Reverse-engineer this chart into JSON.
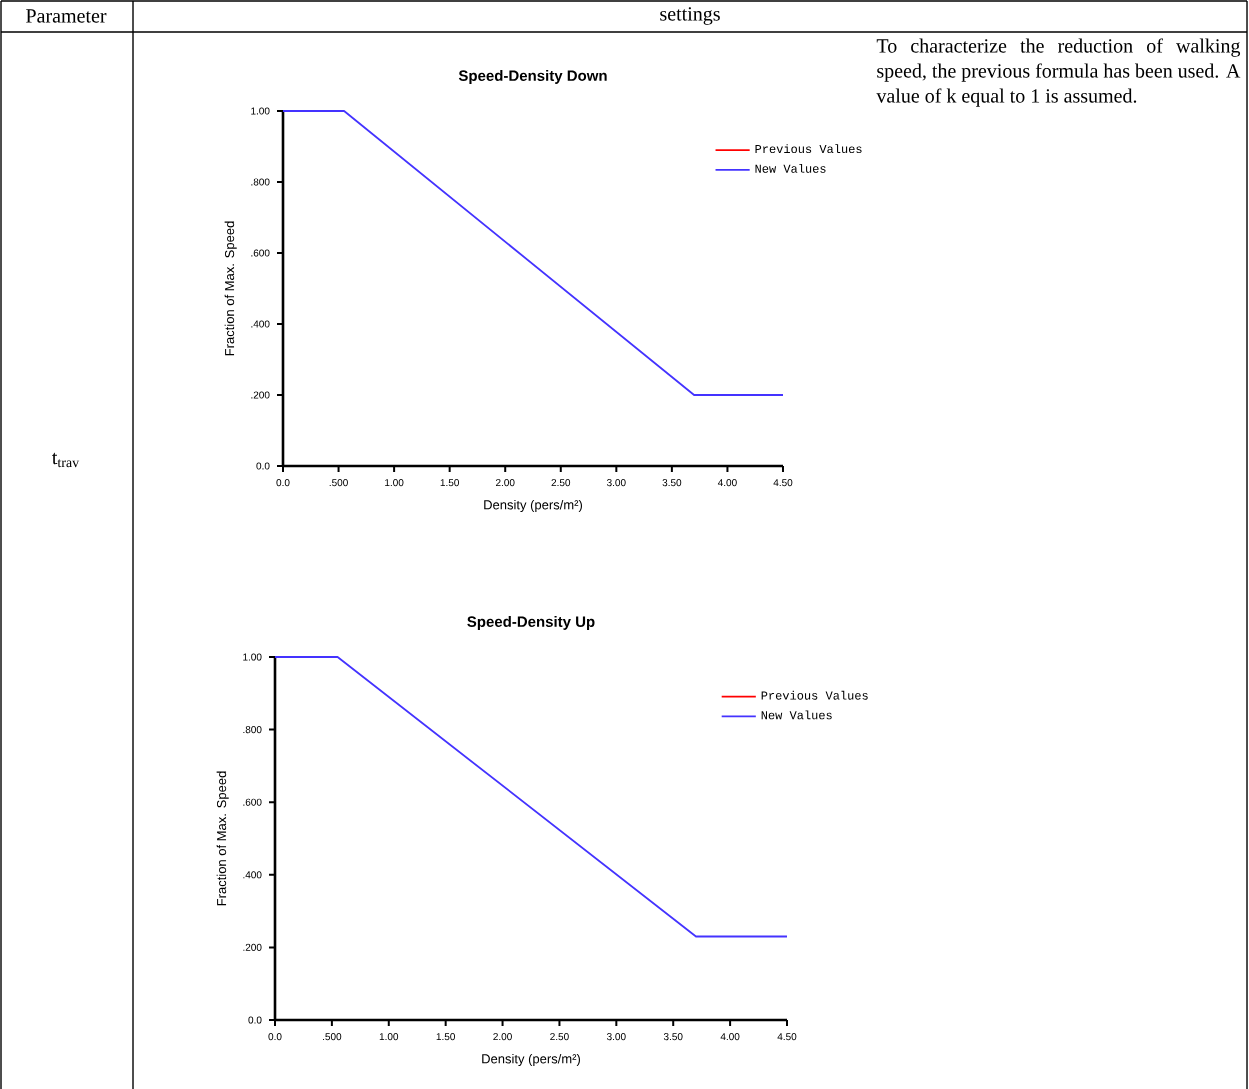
{
  "chart_data": [
    {
      "type": "other",
      "annotations": [
        "Parameter",
        "settings",
        "t$_{trav}$",
        "To characterize the reduction of walking speed, the previous formula has been used. A value of k equal to 1 is assumed."
      ]
    },
    {
      "type": "line",
      "title": "Speed-Density Down",
      "xlabel": "Density (pers/m²)",
      "ylabel": "Fraction of Max. Speed",
      "x": [
        0,
        0.55,
        3.7,
        4.5
      ],
      "series": [
        {
          "name": "Previous Values",
          "color": "#ff0000",
          "values": [
            null,
            null,
            null,
            null
          ]
        },
        {
          "name": "New Values",
          "color": "#4433ff",
          "values": [
            1,
            1,
            0.2,
            0.2
          ]
        }
      ],
      "xlim": [
        0,
        4.5
      ],
      "ylim": [
        0,
        1
      ],
      "xticks": [
        {
          "value": 0,
          "label": "0.0"
        },
        {
          "value": 0.5,
          "label": ".500"
        },
        {
          "value": 1,
          "label": "1.00"
        },
        {
          "value": 1.5,
          "label": "1.50"
        },
        {
          "value": 2,
          "label": "2.00"
        },
        {
          "value": 2.5,
          "label": "2.50"
        },
        {
          "value": 3,
          "label": "3.00"
        },
        {
          "value": 3.5,
          "label": "3.50"
        },
        {
          "value": 4,
          "label": "4.00"
        },
        {
          "value": 4.5,
          "label": "4.50"
        }
      ],
      "yticks": [
        {
          "value": 0,
          "label": "0.0"
        },
        {
          "value": 0.2,
          "label": ".200"
        },
        {
          "value": 0.4,
          "label": ".400"
        },
        {
          "value": 0.6,
          "label": ".600"
        },
        {
          "value": 0.8,
          "label": ".800"
        },
        {
          "value": 1,
          "label": "1.00"
        }
      ],
      "legend": "top right"
    },
    {
      "type": "line",
      "title": "Speed-Density Up",
      "xlabel": "Density (pers/m²)",
      "ylabel": "Fraction of Max. Speed",
      "x": [
        0,
        0.55,
        3.7,
        4.5
      ],
      "series": [
        {
          "name": "Previous Values",
          "color": "#ff0000",
          "values": [
            null,
            null,
            null,
            null
          ]
        },
        {
          "name": "New Values",
          "color": "#4433ff",
          "values": [
            1,
            1,
            0.23,
            0.23
          ]
        }
      ],
      "xlim": [
        0,
        4.5
      ],
      "ylim": [
        0,
        1
      ],
      "xticks": [
        {
          "value": 0,
          "label": "0.0"
        },
        {
          "value": 0.5,
          "label": ".500"
        },
        {
          "value": 1,
          "label": "1.00"
        },
        {
          "value": 1.5,
          "label": "1.50"
        },
        {
          "value": 2,
          "label": "2.00"
        },
        {
          "value": 2.5,
          "label": "2.50"
        },
        {
          "value": 3,
          "label": "3.00"
        },
        {
          "value": 3.5,
          "label": "3.50"
        },
        {
          "value": 4,
          "label": "4.00"
        },
        {
          "value": 4.5,
          "label": "4.50"
        }
      ],
      "yticks": [
        {
          "value": 0,
          "label": "0.0"
        },
        {
          "value": 0.2,
          "label": ".200"
        },
        {
          "value": 0.4,
          "label": ".400"
        },
        {
          "value": 0.6,
          "label": ".600"
        },
        {
          "value": 0.8,
          "label": ".800"
        },
        {
          "value": 1,
          "label": "1.00"
        }
      ],
      "legend": "top right"
    }
  ]
}
